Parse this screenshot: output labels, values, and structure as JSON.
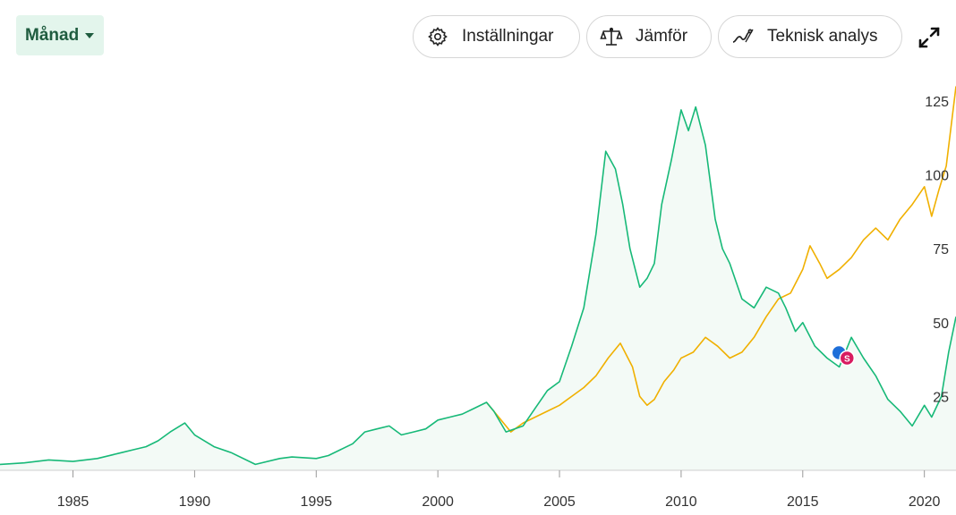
{
  "toolbar": {
    "period_label": "Månad",
    "settings_label": "Inställningar",
    "compare_label": "Jämför",
    "tech_label": "Teknisk analys"
  },
  "marker": {
    "label": "S"
  },
  "colors": {
    "series_primary": "#17b978",
    "series_compare": "#f0b000",
    "marker_blue": "#1e6fd9",
    "marker_red": "#d81b60"
  },
  "chart_data": {
    "type": "line",
    "xlim": [
      1982,
      2021.3
    ],
    "ylim": [
      0,
      135
    ],
    "x_ticks": [
      "1985",
      "1990",
      "1995",
      "2000",
      "2005",
      "2010",
      "2015",
      "2020"
    ],
    "y_ticks": [
      "25",
      "50",
      "75",
      "100",
      "125"
    ],
    "series": [
      {
        "x": [
          1982,
          1983,
          1984,
          1985,
          1986,
          1987,
          1987.5,
          1988,
          1988.5,
          1989,
          1989.6,
          1990,
          1990.8,
          1991.5,
          1992.5,
          1993.5,
          1994,
          1995,
          1995.5,
          1996,
          1996.5,
          1997,
          1997.5,
          1998,
          1998.5,
          1999,
          1999.5,
          2000,
          2000.5,
          2001,
          2001.5,
          2002,
          2002.3,
          2002.8,
          2003.5,
          2004,
          2004.5,
          2005,
          2005.5,
          2006,
          2006.5,
          2006.9,
          2007.3,
          2007.6,
          2007.9,
          2008.3,
          2008.6,
          2008.9,
          2009.2,
          2009.6,
          2010,
          2010.3,
          2010.6,
          2011,
          2011.4,
          2011.7,
          2012,
          2012.5,
          2013,
          2013.5,
          2014,
          2014.3,
          2014.7,
          2015,
          2015.5,
          2016,
          2016.5,
          2017,
          2017.5,
          2018,
          2018.5,
          2019,
          2019.5,
          2020,
          2020.3,
          2020.7,
          2021,
          2021.3
        ],
        "values": [
          2,
          2.5,
          3.5,
          3,
          4,
          6,
          7,
          8,
          10,
          13,
          16,
          12,
          8,
          6,
          2,
          4,
          4.5,
          4,
          5,
          7,
          9,
          13,
          14,
          15,
          12,
          13,
          14,
          17,
          18,
          19,
          21,
          23,
          20,
          13,
          15,
          21,
          27,
          30,
          42,
          55,
          80,
          108,
          102,
          90,
          75,
          62,
          65,
          70,
          90,
          105,
          122,
          115,
          123,
          110,
          85,
          75,
          70,
          58,
          55,
          62,
          60,
          55,
          47,
          50,
          42,
          38,
          35,
          45,
          38,
          32,
          24,
          20,
          15,
          22,
          18,
          25,
          40,
          52
        ]
      },
      {
        "x": [
          2002,
          2002.5,
          2003,
          2003.5,
          2004,
          2004.5,
          2005,
          2005.5,
          2006,
          2006.5,
          2007,
          2007.5,
          2008,
          2008.3,
          2008.6,
          2008.9,
          2009.3,
          2009.7,
          2010,
          2010.5,
          2011,
          2011.5,
          2012,
          2012.5,
          2013,
          2013.5,
          2014,
          2014.5,
          2015,
          2015.3,
          2015.7,
          2016,
          2016.5,
          2017,
          2017.5,
          2018,
          2018.5,
          2019,
          2019.5,
          2020,
          2020.3,
          2020.6,
          2020.9,
          2021.3
        ],
        "values": [
          23,
          18,
          13,
          16,
          18,
          20,
          22,
          25,
          28,
          32,
          38,
          43,
          35,
          25,
          22,
          24,
          30,
          34,
          38,
          40,
          45,
          42,
          38,
          40,
          45,
          52,
          58,
          60,
          68,
          76,
          70,
          65,
          68,
          72,
          78,
          82,
          78,
          85,
          90,
          96,
          86,
          95,
          103,
          130
        ]
      }
    ]
  }
}
